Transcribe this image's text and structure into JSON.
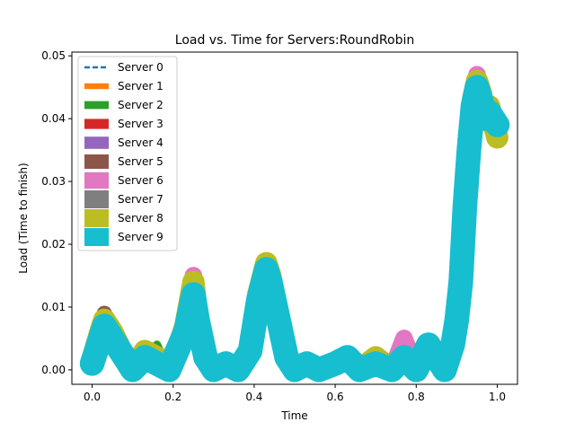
{
  "chart_data": {
    "type": "line",
    "title": "Load vs. Time for Servers:RoundRobin",
    "xlabel": "Time",
    "ylabel": "Load (Time to finish)",
    "xlim": [
      -0.05,
      1.05
    ],
    "ylim": [
      -0.0023,
      0.0506
    ],
    "xticks": [
      0.0,
      0.2,
      0.4,
      0.6,
      0.8,
      1.0
    ],
    "xtick_labels": [
      "0.0",
      "0.2",
      "0.4",
      "0.6",
      "0.8",
      "1.0"
    ],
    "yticks": [
      0.0,
      0.01,
      0.02,
      0.03,
      0.04,
      0.05
    ],
    "ytick_labels": [
      "0.00",
      "0.01",
      "0.02",
      "0.03",
      "0.04",
      "0.05"
    ],
    "grid": false,
    "legend_position": "top-left",
    "x": [
      0.0,
      0.02,
      0.03,
      0.05,
      0.08,
      0.1,
      0.13,
      0.16,
      0.19,
      0.21,
      0.23,
      0.25,
      0.26,
      0.28,
      0.3,
      0.33,
      0.36,
      0.39,
      0.41,
      0.43,
      0.44,
      0.46,
      0.48,
      0.5,
      0.53,
      0.56,
      0.6,
      0.63,
      0.66,
      0.7,
      0.74,
      0.77,
      0.8,
      0.83,
      0.85,
      0.87,
      0.89,
      0.9,
      0.91,
      0.92,
      0.93,
      0.94,
      0.95,
      0.96,
      0.97,
      0.98,
      1.0
    ],
    "series": [
      {
        "name": "Server 0",
        "values": [
          0.001,
          0.005,
          0.01,
          0.006,
          0.002,
          0.0,
          0.001,
          0.002,
          0.0,
          0.003,
          0.006,
          0.012,
          0.008,
          0.002,
          0.0,
          0.001,
          0.0,
          0.003,
          0.011,
          0.016,
          0.015,
          0.008,
          0.002,
          0.0,
          0.001,
          0.0,
          0.001,
          0.002,
          0.0,
          0.001,
          0.0,
          0.002,
          0.0,
          0.004,
          0.002,
          0.0,
          0.004,
          0.008,
          0.015,
          0.026,
          0.036,
          0.042,
          0.046,
          0.044,
          0.04,
          0.042,
          0.038
        ]
      },
      {
        "name": "Server 1",
        "values": [
          0.0015,
          0.005,
          0.008,
          0.006,
          0.002,
          0.0,
          0.002,
          0.002,
          0.0,
          0.003,
          0.007,
          0.013,
          0.009,
          0.002,
          0.0,
          0.001,
          0.0,
          0.003,
          0.011,
          0.016,
          0.015,
          0.008,
          0.002,
          0.0,
          0.001,
          0.0,
          0.001,
          0.002,
          0.0,
          0.001,
          0.0,
          0.002,
          0.0,
          0.004,
          0.002,
          0.0,
          0.004,
          0.008,
          0.015,
          0.027,
          0.036,
          0.043,
          0.047,
          0.044,
          0.041,
          0.042,
          0.038
        ]
      },
      {
        "name": "Server 2",
        "values": [
          0.001,
          0.005,
          0.008,
          0.005,
          0.002,
          0.0,
          0.002,
          0.004,
          0.0,
          0.003,
          0.006,
          0.012,
          0.008,
          0.002,
          0.0,
          0.001,
          0.0,
          0.003,
          0.011,
          0.016,
          0.015,
          0.008,
          0.002,
          0.0,
          0.001,
          0.0,
          0.001,
          0.002,
          0.0,
          0.001,
          0.0,
          0.002,
          0.0,
          0.004,
          0.002,
          0.0,
          0.004,
          0.008,
          0.015,
          0.026,
          0.036,
          0.042,
          0.046,
          0.044,
          0.04,
          0.042,
          0.038
        ]
      },
      {
        "name": "Server 3",
        "values": [
          0.001,
          0.006,
          0.008,
          0.006,
          0.002,
          0.0,
          0.002,
          0.002,
          0.0,
          0.003,
          0.006,
          0.013,
          0.008,
          0.002,
          0.0,
          0.001,
          0.0,
          0.003,
          0.011,
          0.017,
          0.015,
          0.008,
          0.002,
          0.0,
          0.001,
          0.0,
          0.001,
          0.002,
          0.0,
          0.001,
          0.0,
          0.002,
          0.0,
          0.004,
          0.002,
          0.0,
          0.004,
          0.009,
          0.015,
          0.026,
          0.036,
          0.042,
          0.046,
          0.045,
          0.041,
          0.042,
          0.038
        ]
      },
      {
        "name": "Server 4",
        "values": [
          0.001,
          0.005,
          0.008,
          0.006,
          0.002,
          0.0,
          0.002,
          0.002,
          0.0,
          0.003,
          0.006,
          0.013,
          0.008,
          0.002,
          0.0,
          0.001,
          0.0,
          0.003,
          0.011,
          0.016,
          0.015,
          0.008,
          0.002,
          0.0,
          0.001,
          0.0,
          0.001,
          0.002,
          0.0,
          0.001,
          0.0,
          0.005,
          0.0,
          0.004,
          0.002,
          0.0,
          0.004,
          0.008,
          0.015,
          0.026,
          0.036,
          0.042,
          0.046,
          0.044,
          0.04,
          0.042,
          0.038
        ]
      },
      {
        "name": "Server 5",
        "values": [
          0.001,
          0.005,
          0.009,
          0.006,
          0.002,
          0.0,
          0.002,
          0.002,
          0.0,
          0.003,
          0.006,
          0.013,
          0.008,
          0.002,
          0.0,
          0.001,
          0.0,
          0.003,
          0.011,
          0.017,
          0.016,
          0.008,
          0.002,
          0.0,
          0.001,
          0.0,
          0.001,
          0.002,
          0.0,
          0.001,
          0.0,
          0.002,
          0.0,
          0.004,
          0.002,
          0.0,
          0.004,
          0.01,
          0.015,
          0.026,
          0.036,
          0.042,
          0.047,
          0.045,
          0.041,
          0.042,
          0.038
        ]
      },
      {
        "name": "Server 6",
        "values": [
          0.001,
          0.005,
          0.008,
          0.006,
          0.002,
          0.0,
          0.002,
          0.002,
          0.0,
          0.003,
          0.006,
          0.015,
          0.008,
          0.002,
          0.0,
          0.001,
          0.0,
          0.003,
          0.011,
          0.016,
          0.015,
          0.008,
          0.002,
          0.0,
          0.001,
          0.0,
          0.001,
          0.002,
          0.0,
          0.001,
          0.0,
          0.005,
          0.0,
          0.004,
          0.002,
          0.0,
          0.004,
          0.008,
          0.015,
          0.026,
          0.036,
          0.042,
          0.047,
          0.044,
          0.04,
          0.042,
          0.038
        ]
      },
      {
        "name": "Server 7",
        "values": [
          0.001,
          0.005,
          0.008,
          0.006,
          0.002,
          0.0,
          0.002,
          0.002,
          0.0,
          0.003,
          0.006,
          0.013,
          0.008,
          0.002,
          0.0,
          0.001,
          0.0,
          0.003,
          0.011,
          0.016,
          0.015,
          0.008,
          0.002,
          0.0,
          0.001,
          0.0,
          0.001,
          0.002,
          0.0,
          0.001,
          0.0,
          0.002,
          0.0,
          0.004,
          0.002,
          0.0,
          0.004,
          0.008,
          0.015,
          0.026,
          0.036,
          0.042,
          0.046,
          0.044,
          0.04,
          0.042,
          0.038
        ]
      },
      {
        "name": "Server 8",
        "values": [
          0.0015,
          0.006,
          0.008,
          0.006,
          0.002,
          0.0,
          0.003,
          0.002,
          0.0,
          0.003,
          0.007,
          0.014,
          0.008,
          0.002,
          0.0,
          0.001,
          0.0,
          0.003,
          0.012,
          0.017,
          0.015,
          0.008,
          0.002,
          0.0,
          0.001,
          0.0,
          0.001,
          0.002,
          0.0,
          0.002,
          0.0,
          0.002,
          0.0,
          0.004,
          0.002,
          0.0,
          0.004,
          0.009,
          0.016,
          0.027,
          0.037,
          0.043,
          0.046,
          0.044,
          0.04,
          0.042,
          0.037
        ]
      },
      {
        "name": "Server 9",
        "values": [
          0.001,
          0.005,
          0.007,
          0.005,
          0.002,
          0.0,
          0.002,
          0.001,
          0.0,
          0.003,
          0.006,
          0.012,
          0.008,
          0.002,
          0.0,
          0.001,
          0.0,
          0.003,
          0.011,
          0.016,
          0.014,
          0.008,
          0.002,
          0.0,
          0.001,
          0.0,
          0.001,
          0.002,
          0.0,
          0.001,
          0.0,
          0.002,
          0.0,
          0.004,
          0.002,
          0.0,
          0.004,
          0.008,
          0.014,
          0.026,
          0.035,
          0.042,
          0.045,
          0.043,
          0.04,
          0.041,
          0.039
        ]
      }
    ]
  },
  "series_style": [
    {
      "color": "#1f77b4",
      "dash": "6,3"
    },
    {
      "color": "#ff7f0e",
      "dash": ""
    },
    {
      "color": "#2ca02c",
      "dash": ""
    },
    {
      "color": "#d62728",
      "dash": ""
    },
    {
      "color": "#9467bd",
      "dash": ""
    },
    {
      "color": "#8c564b",
      "dash": ""
    },
    {
      "color": "#e377c2",
      "dash": ""
    },
    {
      "color": "#7f7f7f",
      "dash": ""
    },
    {
      "color": "#bcbd22",
      "dash": ""
    },
    {
      "color": "#17becf",
      "dash": ""
    }
  ]
}
